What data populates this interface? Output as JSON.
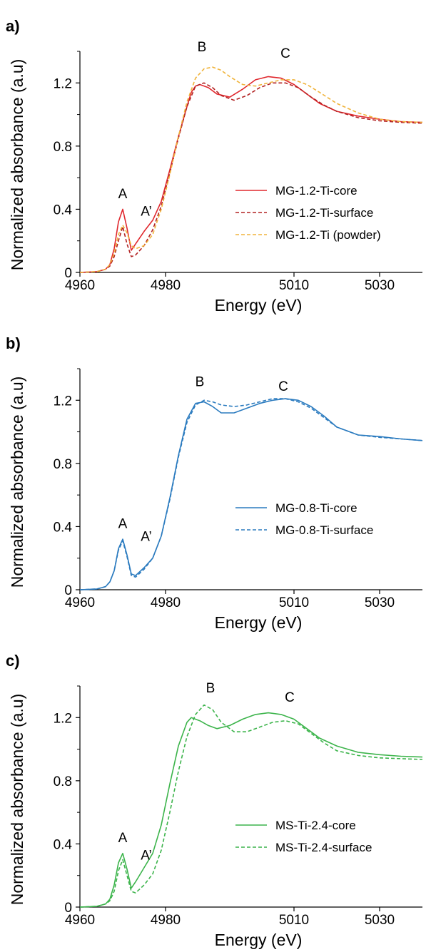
{
  "chart_data": [
    {
      "panel_label": "a)",
      "type": "line",
      "xlabel": "Energy (eV)",
      "ylabel": "Normalized absorbance (a.u)",
      "xlim": [
        4960,
        5040
      ],
      "ylim": [
        0,
        1.4
      ],
      "xticks": [
        4960,
        4980,
        5010,
        5030
      ],
      "yticks": [
        0,
        0.4,
        0.8,
        1.2
      ],
      "ytick_labels": [
        "0",
        "0.4",
        "0.8",
        "1.2"
      ],
      "legend_position": "lower-right",
      "annotations": [
        {
          "text": "A",
          "x": 4970,
          "y": 0.47
        },
        {
          "text": "A’",
          "x": 4975.5,
          "y": 0.36
        },
        {
          "text": "B",
          "x": 4988.5,
          "y": 1.4
        },
        {
          "text": "C",
          "x": 5008,
          "y": 1.36
        }
      ],
      "series": [
        {
          "name": "MG-1.2-Ti-core",
          "color": "#e0282e",
          "dash": "solid",
          "x": [
            4960,
            4964,
            4966,
            4967,
            4968,
            4969,
            4970,
            4971,
            4972,
            4973,
            4975,
            4977,
            4979,
            4981,
            4983,
            4985,
            4986,
            4987,
            4988,
            4990,
            4992,
            4995,
            4998,
            5001,
            5004,
            5007,
            5010,
            5013,
            5016,
            5020,
            5025,
            5030,
            5035,
            5040
          ],
          "y": [
            0,
            0.005,
            0.02,
            0.05,
            0.15,
            0.32,
            0.4,
            0.28,
            0.14,
            0.18,
            0.26,
            0.33,
            0.45,
            0.65,
            0.86,
            1.05,
            1.14,
            1.18,
            1.19,
            1.17,
            1.13,
            1.11,
            1.16,
            1.22,
            1.24,
            1.23,
            1.19,
            1.13,
            1.07,
            1.02,
            0.99,
            0.97,
            0.955,
            0.95
          ]
        },
        {
          "name": "MG-1.2-Ti-surface",
          "color": "#b22222",
          "dash": "dashed",
          "x": [
            4960,
            4964,
            4966,
            4967,
            4968,
            4969,
            4970,
            4971,
            4972,
            4973,
            4975,
            4977,
            4979,
            4981,
            4983,
            4985,
            4987,
            4989,
            4991,
            4993,
            4996,
            4999,
            5002,
            5005,
            5008,
            5011,
            5014,
            5017,
            5020,
            5025,
            5030,
            5035,
            5040
          ],
          "y": [
            0,
            0.005,
            0.02,
            0.04,
            0.1,
            0.2,
            0.29,
            0.18,
            0.1,
            0.11,
            0.17,
            0.27,
            0.42,
            0.63,
            0.85,
            1.05,
            1.18,
            1.2,
            1.17,
            1.12,
            1.09,
            1.12,
            1.17,
            1.2,
            1.2,
            1.17,
            1.11,
            1.06,
            1.02,
            0.98,
            0.96,
            0.95,
            0.945
          ]
        },
        {
          "name": "MG-1.2-Ti (powder)",
          "color": "#f0b43c",
          "dash": "dashed",
          "x": [
            4960,
            4964,
            4966,
            4967,
            4968,
            4969,
            4970,
            4971,
            4972,
            4973,
            4975,
            4977,
            4979,
            4981,
            4983,
            4985,
            4987,
            4989,
            4991,
            4993,
            4995,
            4998,
            5001,
            5004,
            5007,
            5010,
            5013,
            5016,
            5020,
            5025,
            5030,
            5035,
            5040
          ],
          "y": [
            0,
            0.005,
            0.02,
            0.05,
            0.12,
            0.24,
            0.3,
            0.25,
            0.17,
            0.15,
            0.17,
            0.24,
            0.4,
            0.62,
            0.86,
            1.08,
            1.23,
            1.29,
            1.3,
            1.28,
            1.24,
            1.19,
            1.18,
            1.2,
            1.22,
            1.22,
            1.19,
            1.14,
            1.07,
            1.01,
            0.97,
            0.955,
            0.95
          ]
        }
      ]
    },
    {
      "panel_label": "b)",
      "type": "line",
      "xlabel": "Energy (eV)",
      "ylabel": "Normalized absorbance (a.u)",
      "xlim": [
        4960,
        5040
      ],
      "ylim": [
        0,
        1.4
      ],
      "xticks": [
        4960,
        4980,
        5010,
        5030
      ],
      "yticks": [
        0,
        0.4,
        0.8,
        1.2
      ],
      "ytick_labels": [
        "0",
        "0.4",
        "0.8",
        "1.2"
      ],
      "legend_position": "lower-right",
      "annotations": [
        {
          "text": "A",
          "x": 4970,
          "y": 0.39
        },
        {
          "text": "A’",
          "x": 4975.5,
          "y": 0.31
        },
        {
          "text": "B",
          "x": 4988,
          "y": 1.29
        },
        {
          "text": "C",
          "x": 5007.5,
          "y": 1.26
        }
      ],
      "series": [
        {
          "name": "MG-0.8-Ti-core",
          "color": "#2b7bbf",
          "dash": "solid",
          "x": [
            4960,
            4964,
            4966,
            4967,
            4968,
            4969,
            4970,
            4971,
            4972,
            4973,
            4975,
            4977,
            4979,
            4981,
            4983,
            4985,
            4987,
            4989,
            4991,
            4993,
            4996,
            4999,
            5002,
            5005,
            5008,
            5011,
            5014,
            5017,
            5020,
            5025,
            5030,
            5035,
            5040
          ],
          "y": [
            0,
            0.005,
            0.02,
            0.05,
            0.12,
            0.26,
            0.32,
            0.22,
            0.1,
            0.09,
            0.14,
            0.2,
            0.34,
            0.58,
            0.85,
            1.08,
            1.18,
            1.19,
            1.16,
            1.12,
            1.12,
            1.15,
            1.18,
            1.2,
            1.21,
            1.2,
            1.16,
            1.1,
            1.03,
            0.98,
            0.97,
            0.955,
            0.945
          ]
        },
        {
          "name": "MG-0.8-Ti-surface",
          "color": "#2b7bbf",
          "dash": "dashed",
          "x": [
            4960,
            4964,
            4966,
            4967,
            4968,
            4969,
            4970,
            4971,
            4972,
            4973,
            4975,
            4977,
            4979,
            4981,
            4983,
            4985,
            4987,
            4989,
            4991,
            4993,
            4996,
            4999,
            5002,
            5005,
            5008,
            5011,
            5014,
            5017,
            5020,
            5025,
            5030,
            5035,
            5040
          ],
          "y": [
            0,
            0.005,
            0.02,
            0.05,
            0.12,
            0.25,
            0.31,
            0.21,
            0.09,
            0.08,
            0.13,
            0.2,
            0.34,
            0.57,
            0.84,
            1.06,
            1.17,
            1.2,
            1.19,
            1.17,
            1.16,
            1.17,
            1.19,
            1.21,
            1.21,
            1.19,
            1.15,
            1.09,
            1.03,
            0.98,
            0.965,
            0.955,
            0.945
          ]
        }
      ]
    },
    {
      "panel_label": "c)",
      "type": "line",
      "xlabel": "Energy (eV)",
      "ylabel": "Normalized absorbance (a.u)",
      "xlim": [
        4960,
        5040
      ],
      "ylim": [
        0,
        1.4
      ],
      "xticks": [
        4960,
        4980,
        5010,
        5030
      ],
      "yticks": [
        0,
        0.4,
        0.8,
        1.2
      ],
      "ytick_labels": [
        "0",
        "0.4",
        "0.8",
        "1.2"
      ],
      "legend_position": "lower-right",
      "annotations": [
        {
          "text": "A",
          "x": 4970,
          "y": 0.41
        },
        {
          "text": "A’",
          "x": 4975.5,
          "y": 0.3
        },
        {
          "text": "B",
          "x": 4990.5,
          "y": 1.36
        },
        {
          "text": "C",
          "x": 5009,
          "y": 1.3
        }
      ],
      "series": [
        {
          "name": "MS-Ti-2.4-core",
          "color": "#3cb44b",
          "dash": "solid",
          "x": [
            4960,
            4964,
            4966,
            4967,
            4968,
            4969,
            4970,
            4971,
            4972,
            4973,
            4975,
            4977,
            4979,
            4981,
            4983,
            4985,
            4986,
            4988,
            4990,
            4992,
            4995,
            4998,
            5001,
            5004,
            5007,
            5010,
            5013,
            5016,
            5020,
            5025,
            5030,
            5035,
            5040
          ],
          "y": [
            0,
            0.005,
            0.02,
            0.05,
            0.14,
            0.28,
            0.34,
            0.24,
            0.12,
            0.16,
            0.25,
            0.34,
            0.52,
            0.78,
            1.02,
            1.17,
            1.2,
            1.18,
            1.15,
            1.13,
            1.15,
            1.19,
            1.22,
            1.23,
            1.22,
            1.19,
            1.13,
            1.07,
            1.02,
            0.98,
            0.965,
            0.955,
            0.95
          ]
        },
        {
          "name": "MS-Ti-2.4-surface",
          "color": "#3cb44b",
          "dash": "dashed",
          "x": [
            4960,
            4964,
            4966,
            4967,
            4968,
            4969,
            4970,
            4971,
            4972,
            4973,
            4975,
            4977,
            4979,
            4981,
            4983,
            4985,
            4987,
            4989,
            4991,
            4993,
            4996,
            4999,
            5002,
            5005,
            5008,
            5011,
            5014,
            5017,
            5020,
            5025,
            5030,
            5035,
            5040
          ],
          "y": [
            0,
            0.005,
            0.02,
            0.04,
            0.1,
            0.23,
            0.3,
            0.2,
            0.1,
            0.09,
            0.14,
            0.21,
            0.36,
            0.6,
            0.86,
            1.08,
            1.22,
            1.28,
            1.25,
            1.17,
            1.11,
            1.11,
            1.14,
            1.17,
            1.18,
            1.16,
            1.1,
            1.04,
            0.99,
            0.96,
            0.945,
            0.94,
            0.935
          ]
        }
      ]
    }
  ]
}
